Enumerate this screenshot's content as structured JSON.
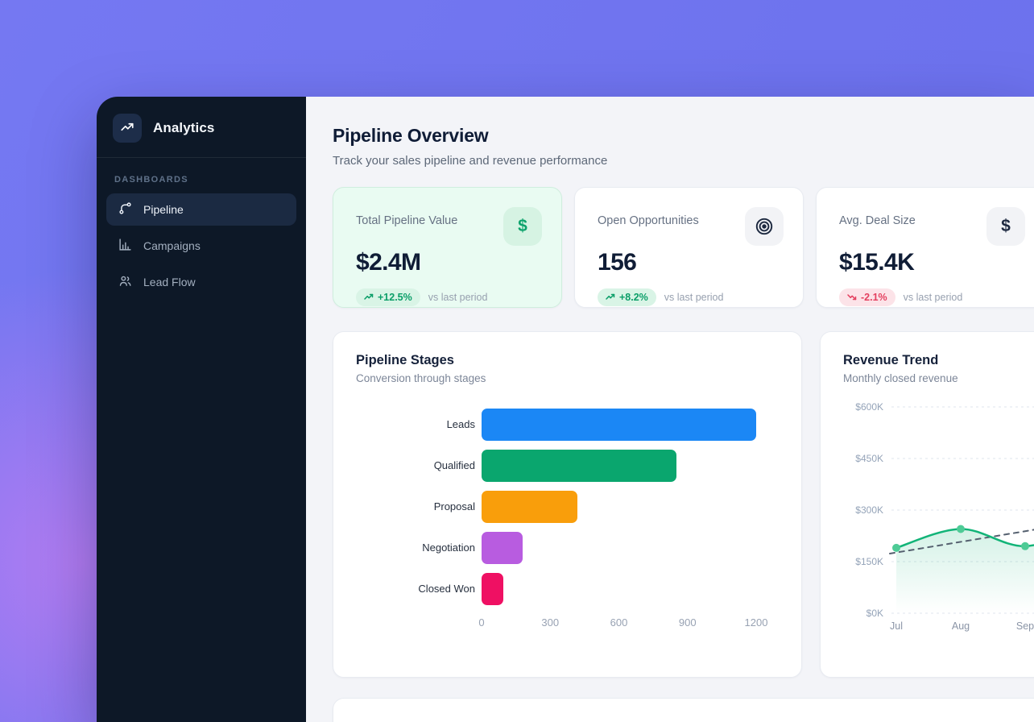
{
  "app": {
    "brand": "Analytics"
  },
  "sidebar": {
    "section_label": "DASHBOARDS",
    "items": [
      {
        "label": "Pipeline",
        "icon": "waypoints-icon",
        "active": true
      },
      {
        "label": "Campaigns",
        "icon": "bar-chart-icon",
        "active": false
      },
      {
        "label": "Lead Flow",
        "icon": "users-icon",
        "active": false
      }
    ]
  },
  "header": {
    "title": "Pipeline Overview",
    "subtitle": "Track your sales pipeline and revenue performance"
  },
  "kpis": [
    {
      "label": "Total Pipeline Value",
      "value": "$2.4M",
      "delta": "+12.5%",
      "direction": "up",
      "compare": "vs last period",
      "icon": "dollar-icon",
      "highlight": true
    },
    {
      "label": "Open Opportunities",
      "value": "156",
      "delta": "+8.2%",
      "direction": "up",
      "compare": "vs last period",
      "icon": "target-icon",
      "highlight": false
    },
    {
      "label": "Avg. Deal Size",
      "value": "$15.4K",
      "delta": "-2.1%",
      "direction": "down",
      "compare": "vs last period",
      "icon": "dollar-icon",
      "highlight": false
    }
  ],
  "chart_data": [
    {
      "type": "bar",
      "orientation": "horizontal",
      "title": "Pipeline Stages",
      "subtitle": "Conversion through stages",
      "categories": [
        "Leads",
        "Qualified",
        "Proposal",
        "Negotiation",
        "Closed Won"
      ],
      "values": [
        1200,
        850,
        420,
        180,
        95
      ],
      "bar_colors": [
        "#1b87f5",
        "#0aa66e",
        "#f99e0b",
        "#b85ce0",
        "#ef1063"
      ],
      "xlim": [
        0,
        1200
      ],
      "xticks": [
        0,
        300,
        600,
        900,
        1200
      ],
      "grid": false
    },
    {
      "type": "line",
      "title": "Revenue Trend",
      "subtitle": "Monthly closed revenue",
      "x": [
        "Jul",
        "Aug",
        "Sep"
      ],
      "values_k": [
        190,
        245,
        195
      ],
      "unit": "$K",
      "ylim_k": [
        0,
        600
      ],
      "ytick_labels": [
        "$600K",
        "$450K",
        "$300K",
        "$150K",
        "$0K"
      ],
      "grid": "dashed-horizontal",
      "area_fill": true,
      "trend_line": true,
      "line_continues_beyond_right_edge": true,
      "legend": "none"
    }
  ],
  "colors": {
    "desktop_purple": "#6e73ee",
    "desktop_glow": "#b97df2",
    "sidebar_bg": "#0d1827",
    "page_bg": "#f3f4f8",
    "surface": "#ffffff",
    "text_dark": "#101d36",
    "text_muted": "#667183",
    "positive": "#0b9e68",
    "negative": "#e4405f",
    "line_green": "#12b478",
    "dot_green": "#4ecb96",
    "trend_dash_gray": "#55606f",
    "kpi_highlight_bg": "#e9fbf2"
  }
}
